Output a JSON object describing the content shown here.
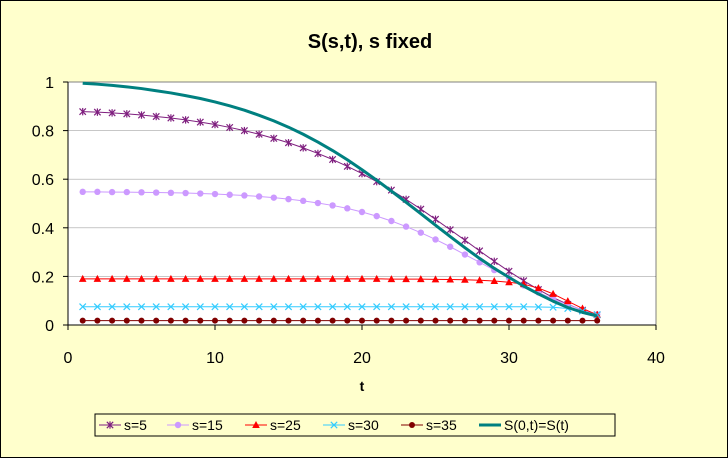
{
  "chart_data": {
    "type": "line",
    "title": "S(s,t), s fixed",
    "xlabel": "t",
    "ylabel": "",
    "xlim": [
      0,
      40
    ],
    "ylim": [
      0,
      1
    ],
    "x_ticks": [
      "0",
      "10",
      "20",
      "30",
      "40"
    ],
    "y_ticks": [
      "0",
      "0.2",
      "0.4",
      "0.6",
      "0.8",
      "1"
    ],
    "grid": "horizontal",
    "legend_position": "bottom",
    "x": [
      1,
      2,
      3,
      4,
      5,
      6,
      7,
      8,
      9,
      10,
      11,
      12,
      13,
      14,
      15,
      16,
      17,
      18,
      19,
      20,
      21,
      22,
      23,
      24,
      25,
      26,
      27,
      28,
      29,
      30,
      31,
      32,
      33,
      34,
      35,
      36
    ],
    "series": [
      {
        "name": "s=5",
        "color": "#7f1f7f",
        "marker": "star",
        "values": [
          0.878,
          0.876,
          0.873,
          0.869,
          0.864,
          0.858,
          0.852,
          0.844,
          0.835,
          0.825,
          0.813,
          0.8,
          0.785,
          0.768,
          0.75,
          0.729,
          0.706,
          0.681,
          0.653,
          0.623,
          0.59,
          0.555,
          0.517,
          0.477,
          0.435,
          0.392,
          0.349,
          0.305,
          0.262,
          0.221,
          0.182,
          0.146,
          0.113,
          0.085,
          0.061,
          0.042
        ]
      },
      {
        "name": "s=15",
        "color": "#cc99ff",
        "marker": "circle",
        "values": [
          0.548,
          0.548,
          0.547,
          0.547,
          0.546,
          0.545,
          0.544,
          0.543,
          0.541,
          0.539,
          0.536,
          0.533,
          0.529,
          0.524,
          0.518,
          0.511,
          0.502,
          0.492,
          0.48,
          0.465,
          0.448,
          0.428,
          0.405,
          0.38,
          0.352,
          0.322,
          0.29,
          0.258,
          0.226,
          0.194,
          0.163,
          0.134,
          0.107,
          0.083,
          0.062,
          0.043
        ]
      },
      {
        "name": "s=25",
        "color": "#ff0000",
        "marker": "triangle",
        "values": [
          0.19,
          0.19,
          0.19,
          0.19,
          0.19,
          0.19,
          0.19,
          0.19,
          0.19,
          0.19,
          0.19,
          0.19,
          0.19,
          0.19,
          0.19,
          0.19,
          0.19,
          0.19,
          0.19,
          0.19,
          0.19,
          0.189,
          0.189,
          0.189,
          0.188,
          0.187,
          0.186,
          0.184,
          0.181,
          0.176,
          0.168,
          0.152,
          0.128,
          0.098,
          0.068,
          0.042
        ]
      },
      {
        "name": "s=30",
        "color": "#33ccff",
        "marker": "x",
        "values": [
          0.075,
          0.075,
          0.075,
          0.075,
          0.075,
          0.075,
          0.075,
          0.075,
          0.075,
          0.075,
          0.075,
          0.075,
          0.075,
          0.075,
          0.075,
          0.075,
          0.075,
          0.075,
          0.075,
          0.075,
          0.075,
          0.075,
          0.075,
          0.075,
          0.075,
          0.075,
          0.075,
          0.075,
          0.075,
          0.075,
          0.075,
          0.074,
          0.073,
          0.068,
          0.057,
          0.042
        ]
      },
      {
        "name": "s=35",
        "color": "#800000",
        "marker": "dot",
        "values": [
          0.018,
          0.018,
          0.018,
          0.018,
          0.018,
          0.018,
          0.018,
          0.018,
          0.018,
          0.018,
          0.018,
          0.018,
          0.018,
          0.018,
          0.018,
          0.018,
          0.018,
          0.018,
          0.018,
          0.018,
          0.018,
          0.018,
          0.018,
          0.018,
          0.018,
          0.018,
          0.018,
          0.018,
          0.018,
          0.018,
          0.018,
          0.018,
          0.018,
          0.018,
          0.018,
          0.018
        ]
      },
      {
        "name": "S(0,t)=S(t)",
        "color": "#008080",
        "marker": "none",
        "values": [
          0.995,
          0.991,
          0.986,
          0.98,
          0.973,
          0.964,
          0.955,
          0.944,
          0.932,
          0.918,
          0.902,
          0.884,
          0.863,
          0.84,
          0.814,
          0.785,
          0.753,
          0.718,
          0.68,
          0.639,
          0.596,
          0.551,
          0.505,
          0.458,
          0.411,
          0.364,
          0.318,
          0.274,
          0.233,
          0.196,
          0.16,
          0.128,
          0.098,
          0.072,
          0.052,
          0.037
        ]
      }
    ]
  }
}
